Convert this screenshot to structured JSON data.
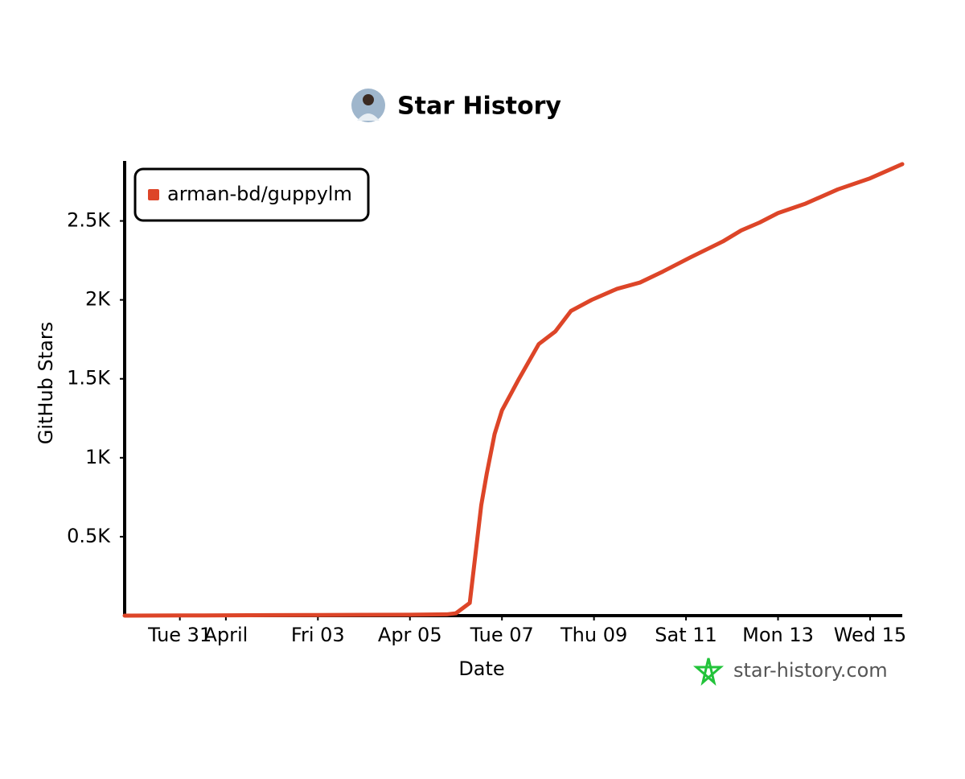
{
  "chart_data": {
    "type": "line",
    "title": "Star History",
    "xlabel": "Date",
    "ylabel": "GitHub Stars",
    "watermark": "star-history.com",
    "x": [
      -1.2,
      0,
      1,
      2,
      3,
      4,
      5,
      5.8,
      6.0,
      6.3,
      6.55,
      6.67,
      6.84,
      7.0,
      7.37,
      7.8,
      8.16,
      8.5,
      8.95,
      9.5,
      10.0,
      10.5,
      11.1,
      11.8,
      12.2,
      12.6,
      13.0,
      13.6,
      14.3,
      15.0,
      15.7
    ],
    "series": [
      {
        "name": "arman-bd/guppylm",
        "color": "#dd4528",
        "values": [
          0,
          1,
          2,
          3,
          4,
          5,
          6,
          8,
          15,
          80,
          700,
          900,
          1150,
          1300,
          1500,
          1720,
          1800,
          1930,
          2000,
          2070,
          2110,
          2180,
          2270,
          2370,
          2440,
          2490,
          2550,
          2610,
          2700,
          2770,
          2860
        ]
      }
    ],
    "xlim": [
      -1.2,
      15.7
    ],
    "xticks": [
      {
        "value": 0,
        "label": "Tue 31"
      },
      {
        "value": 1,
        "label": "April"
      },
      {
        "value": 3,
        "label": "Fri 03"
      },
      {
        "value": 5,
        "label": "Apr 05"
      },
      {
        "value": 7,
        "label": "Tue 07"
      },
      {
        "value": 9,
        "label": "Thu 09"
      },
      {
        "value": 11,
        "label": "Sat 11"
      },
      {
        "value": 13,
        "label": "Mon 13"
      },
      {
        "value": 15,
        "label": "Wed 15"
      }
    ],
    "ylim": [
      0,
      2880
    ],
    "yticks": [
      {
        "value": 500,
        "label": "0.5K"
      },
      {
        "value": 1000,
        "label": "1K"
      },
      {
        "value": 1500,
        "label": "1.5K"
      },
      {
        "value": 2000,
        "label": "2K"
      },
      {
        "value": 2500,
        "label": "2.5K"
      }
    ],
    "grid": false,
    "legend": "top-left"
  }
}
